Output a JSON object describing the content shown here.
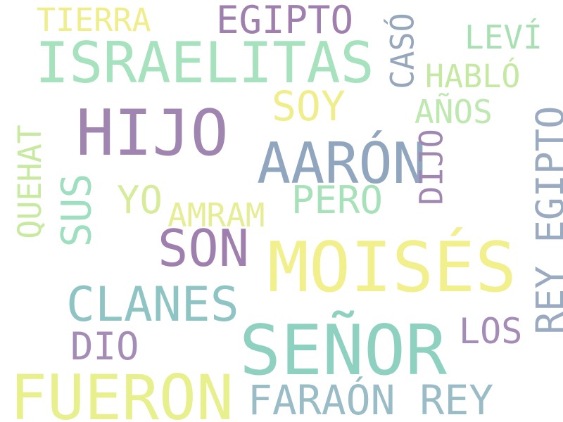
{
  "words": [
    {
      "text": "TIERRA",
      "color": "#f0ee8a",
      "rotated": false
    },
    {
      "text": "EGIPTO",
      "color": "#9f7fae",
      "rotated": false
    },
    {
      "text": "CASÓ",
      "color": "#96a7bc",
      "rotated": true
    },
    {
      "text": "LEVÍ",
      "color": "#a8e0b3",
      "rotated": false
    },
    {
      "text": "ISRAELITAS",
      "color": "#a6e2bd",
      "rotated": false
    },
    {
      "text": "HABLÓ",
      "color": "#c5e9a3",
      "rotated": false
    },
    {
      "text": "SOY",
      "color": "#f0ee8a",
      "rotated": false
    },
    {
      "text": "AÑOS",
      "color": "#bfe8b1",
      "rotated": false
    },
    {
      "text": "HIJO",
      "color": "#a085b1",
      "rotated": false
    },
    {
      "text": "REY EGIPTO",
      "color": "#9aaac0",
      "rotated": true
    },
    {
      "text": "QUEHAT",
      "color": "#c8e9a0",
      "rotated": true
    },
    {
      "text": "AARÓN",
      "color": "#90a6be",
      "rotated": false
    },
    {
      "text": "DIJO",
      "color": "#a087b2",
      "rotated": true
    },
    {
      "text": "SUS",
      "color": "#9ddfc0",
      "rotated": true
    },
    {
      "text": "YO",
      "color": "#d7ec9b",
      "rotated": false
    },
    {
      "text": "PERO",
      "color": "#a7e1ba",
      "rotated": false
    },
    {
      "text": "AMRAM",
      "color": "#e7ed94",
      "rotated": false
    },
    {
      "text": "SON",
      "color": "#9f7fae",
      "rotated": false
    },
    {
      "text": "MOISÉS",
      "color": "#f2f08c",
      "rotated": false
    },
    {
      "text": "CLANES",
      "color": "#8fc4c4",
      "rotated": false
    },
    {
      "text": "LOS",
      "color": "#a48cb6",
      "rotated": false
    },
    {
      "text": "DIO",
      "color": "#a48cb6",
      "rotated": false
    },
    {
      "text": "SEÑOR",
      "color": "#8fd1c0",
      "rotated": false
    },
    {
      "text": "FUERON",
      "color": "#e8f08e",
      "rotated": false
    },
    {
      "text": "FARAÓN REY",
      "color": "#99bcc6",
      "rotated": false
    }
  ]
}
